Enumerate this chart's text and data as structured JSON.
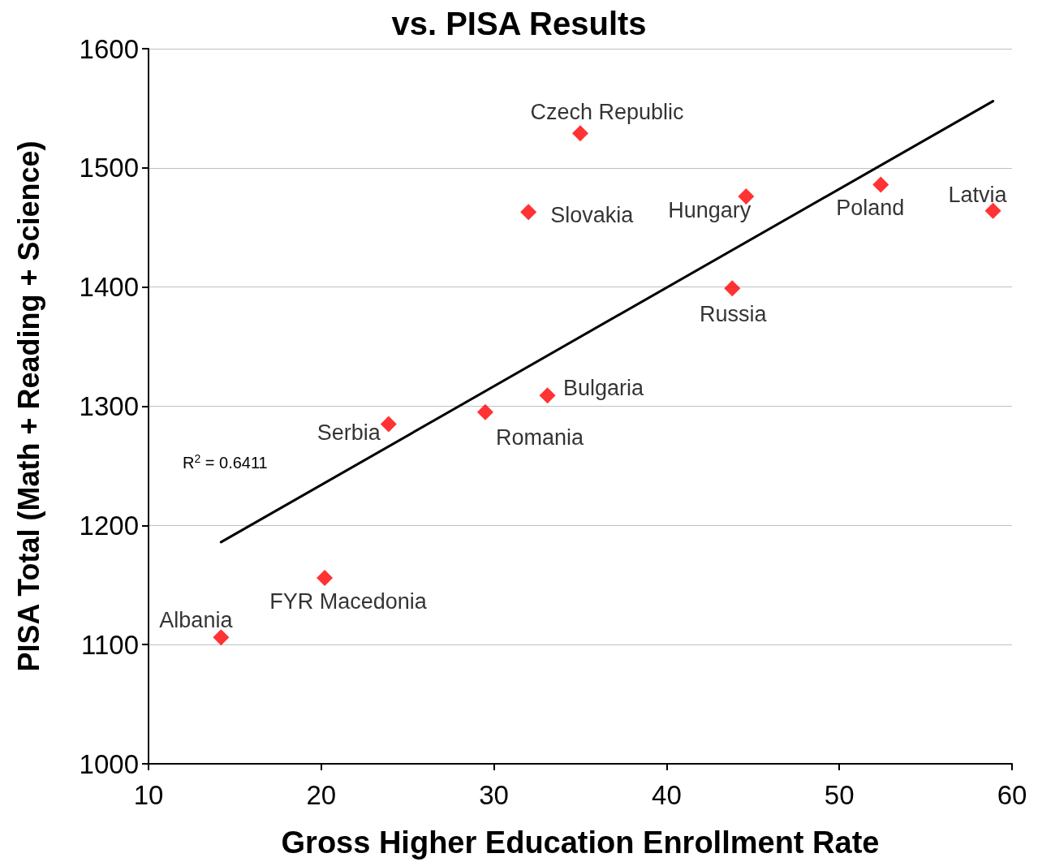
{
  "chart_data": {
    "type": "scatter",
    "title": "vs. PISA Results",
    "xlabel": "Gross Higher Education Enrollment Rate",
    "ylabel": "PISA Total (Math + Reading + Science)",
    "xlim": [
      10,
      60
    ],
    "xticks": [
      10,
      20,
      30,
      40,
      50,
      60
    ],
    "ylim": [
      1000,
      1600
    ],
    "yticks": [
      1000,
      1100,
      1200,
      1300,
      1400,
      1500,
      1600
    ],
    "grid": "y",
    "series": [
      {
        "color": "#ff0000",
        "marker": "diamond",
        "x": [
          14.2,
          20.2,
          23.9,
          29.5,
          33.1,
          32.0,
          35.0,
          43.8,
          44.6,
          52.4,
          58.9
        ],
        "values": [
          1106,
          1156,
          1285,
          1295,
          1309,
          1463,
          1529,
          1399,
          1476,
          1486,
          1464
        ]
      },
      {
        "type": "line",
        "color": "#000000",
        "marker": "none",
        "line_style": "solid",
        "x": [
          14.2,
          58.9
        ],
        "values": [
          1186,
          1556
        ]
      }
    ],
    "annotations": [
      {
        "text": "Albania",
        "x": 14.2,
        "y": 1106
      },
      {
        "text": "FYR Macedonia",
        "x": 20.2,
        "y": 1156
      },
      {
        "text": "Serbia",
        "x": 23.9,
        "y": 1285
      },
      {
        "text": "Romania",
        "x": 29.5,
        "y": 1295
      },
      {
        "text": "Bulgaria",
        "x": 33.1,
        "y": 1309
      },
      {
        "text": "Slovakia",
        "x": 32.0,
        "y": 1463
      },
      {
        "text": "Czech Republic",
        "x": 35.0,
        "y": 1529
      },
      {
        "text": "Russia",
        "x": 43.8,
        "y": 1399
      },
      {
        "text": "Hungary",
        "x": 44.6,
        "y": 1476
      },
      {
        "text": "Poland",
        "x": 52.4,
        "y": 1486
      },
      {
        "text": "Latvia",
        "x": 58.9,
        "y": 1464
      },
      "R$^{2}$ = 0.6411"
    ]
  }
}
